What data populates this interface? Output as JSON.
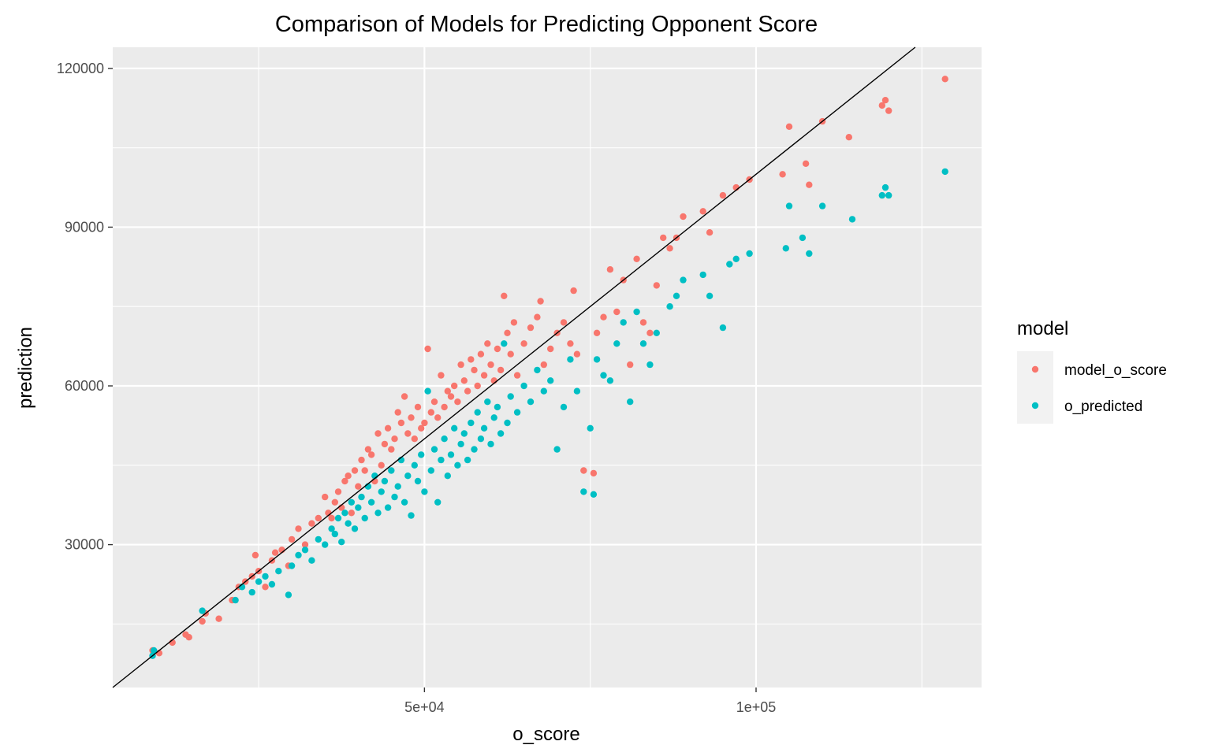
{
  "chart_data": {
    "type": "scatter",
    "title": "Comparison of Models for Predicting Opponent Score",
    "xlabel": "o_score",
    "ylabel": "prediction",
    "xlim": [
      3000,
      134000
    ],
    "ylim": [
      3000,
      124000
    ],
    "x_ticks": [
      {
        "value": 50000,
        "label": "5e+04"
      },
      {
        "value": 100000,
        "label": "1e+05"
      }
    ],
    "x_minor_ticks": [
      25000,
      75000,
      125000
    ],
    "y_ticks": [
      {
        "value": 30000,
        "label": "30000"
      },
      {
        "value": 60000,
        "label": "60000"
      },
      {
        "value": 90000,
        "label": "90000"
      },
      {
        "value": 120000,
        "label": "120000"
      }
    ],
    "y_minor_ticks": [
      15000,
      45000,
      75000,
      105000
    ],
    "grid": true,
    "panel_background": "#ebebeb",
    "reference_line": {
      "slope": 1,
      "intercept": 0,
      "color": "#000000"
    },
    "legend": {
      "title": "model",
      "placement": "right",
      "entries": [
        {
          "label": "model_o_score",
          "color": "#f8766d"
        },
        {
          "label": "o_predicted",
          "color": "#00bfc4"
        }
      ]
    },
    "series": [
      {
        "name": "model_o_score",
        "color": "#f8766d",
        "points": [
          [
            9000,
            10000
          ],
          [
            10000,
            9500
          ],
          [
            12000,
            11500
          ],
          [
            14000,
            13000
          ],
          [
            14500,
            12500
          ],
          [
            16500,
            15500
          ],
          [
            17000,
            17000
          ],
          [
            19000,
            16000
          ],
          [
            21000,
            19500
          ],
          [
            22000,
            22000
          ],
          [
            23000,
            23000
          ],
          [
            24000,
            24000
          ],
          [
            24500,
            28000
          ],
          [
            25000,
            25000
          ],
          [
            26000,
            22000
          ],
          [
            27000,
            27000
          ],
          [
            27500,
            28500
          ],
          [
            28500,
            29000
          ],
          [
            29500,
            26000
          ],
          [
            30000,
            31000
          ],
          [
            31000,
            33000
          ],
          [
            32000,
            30000
          ],
          [
            33000,
            34000
          ],
          [
            34000,
            35000
          ],
          [
            35000,
            39000
          ],
          [
            35500,
            36000
          ],
          [
            36000,
            35000
          ],
          [
            36500,
            38000
          ],
          [
            37000,
            40000
          ],
          [
            37500,
            37000
          ],
          [
            38000,
            42000
          ],
          [
            38500,
            43000
          ],
          [
            39000,
            36000
          ],
          [
            39500,
            44000
          ],
          [
            40000,
            41000
          ],
          [
            40500,
            46000
          ],
          [
            41000,
            44000
          ],
          [
            41500,
            48000
          ],
          [
            42000,
            47000
          ],
          [
            42500,
            42000
          ],
          [
            43000,
            51000
          ],
          [
            43500,
            45000
          ],
          [
            44000,
            49000
          ],
          [
            44500,
            52000
          ],
          [
            45000,
            48000
          ],
          [
            45500,
            50000
          ],
          [
            46000,
            55000
          ],
          [
            46500,
            53000
          ],
          [
            47000,
            58000
          ],
          [
            47500,
            51000
          ],
          [
            48000,
            54000
          ],
          [
            48500,
            50000
          ],
          [
            49000,
            56000
          ],
          [
            49500,
            52000
          ],
          [
            50000,
            53000
          ],
          [
            50500,
            67000
          ],
          [
            51000,
            55000
          ],
          [
            51500,
            57000
          ],
          [
            52000,
            54000
          ],
          [
            52500,
            62000
          ],
          [
            53000,
            56000
          ],
          [
            53500,
            59000
          ],
          [
            54000,
            58000
          ],
          [
            54500,
            60000
          ],
          [
            55000,
            57000
          ],
          [
            55500,
            64000
          ],
          [
            56000,
            61000
          ],
          [
            56500,
            59000
          ],
          [
            57000,
            65000
          ],
          [
            57500,
            63000
          ],
          [
            58000,
            60000
          ],
          [
            58500,
            66000
          ],
          [
            59000,
            62000
          ],
          [
            59500,
            68000
          ],
          [
            60000,
            64000
          ],
          [
            60500,
            61000
          ],
          [
            61000,
            67000
          ],
          [
            61500,
            63000
          ],
          [
            62000,
            77000
          ],
          [
            62500,
            70000
          ],
          [
            63000,
            66000
          ],
          [
            63500,
            72000
          ],
          [
            64000,
            62000
          ],
          [
            65000,
            68000
          ],
          [
            66000,
            71000
          ],
          [
            67000,
            73000
          ],
          [
            67500,
            76000
          ],
          [
            68000,
            64000
          ],
          [
            69000,
            67000
          ],
          [
            70000,
            70000
          ],
          [
            71000,
            72000
          ],
          [
            72000,
            68000
          ],
          [
            72500,
            78000
          ],
          [
            73000,
            66000
          ],
          [
            74000,
            44000
          ],
          [
            75500,
            43500
          ],
          [
            76000,
            70000
          ],
          [
            77000,
            73000
          ],
          [
            78000,
            82000
          ],
          [
            79000,
            74000
          ],
          [
            80000,
            80000
          ],
          [
            81000,
            64000
          ],
          [
            82000,
            84000
          ],
          [
            83000,
            72000
          ],
          [
            84000,
            70000
          ],
          [
            85000,
            79000
          ],
          [
            86000,
            88000
          ],
          [
            87000,
            86000
          ],
          [
            88000,
            88000
          ],
          [
            89000,
            92000
          ],
          [
            92000,
            93000
          ],
          [
            93000,
            89000
          ],
          [
            95000,
            96000
          ],
          [
            97000,
            97500
          ],
          [
            99000,
            99000
          ],
          [
            104000,
            100000
          ],
          [
            105000,
            109000
          ],
          [
            107500,
            102000
          ],
          [
            108000,
            98000
          ],
          [
            110000,
            110000
          ],
          [
            114000,
            107000
          ],
          [
            119000,
            113000
          ],
          [
            119500,
            114000
          ],
          [
            120000,
            112000
          ],
          [
            128500,
            118000
          ]
        ]
      },
      {
        "name": "o_predicted",
        "color": "#00bfc4",
        "points": [
          [
            9000,
            9000
          ],
          [
            9200,
            10000
          ],
          [
            16500,
            17500
          ],
          [
            21500,
            19500
          ],
          [
            22500,
            22000
          ],
          [
            24000,
            21000
          ],
          [
            25000,
            23000
          ],
          [
            26000,
            24000
          ],
          [
            27000,
            22500
          ],
          [
            28000,
            25000
          ],
          [
            29500,
            20500
          ],
          [
            30000,
            26000
          ],
          [
            31000,
            28000
          ],
          [
            32000,
            29000
          ],
          [
            33000,
            27000
          ],
          [
            34000,
            31000
          ],
          [
            35000,
            30000
          ],
          [
            36000,
            33000
          ],
          [
            36500,
            32000
          ],
          [
            37000,
            35000
          ],
          [
            37500,
            30500
          ],
          [
            38000,
            36000
          ],
          [
            38500,
            34000
          ],
          [
            39000,
            38000
          ],
          [
            39500,
            33000
          ],
          [
            40000,
            37000
          ],
          [
            40500,
            39000
          ],
          [
            41000,
            35000
          ],
          [
            41500,
            41000
          ],
          [
            42000,
            38000
          ],
          [
            42500,
            43000
          ],
          [
            43000,
            36000
          ],
          [
            43500,
            40000
          ],
          [
            44000,
            42000
          ],
          [
            44500,
            37000
          ],
          [
            45000,
            44000
          ],
          [
            45500,
            39000
          ],
          [
            46000,
            41000
          ],
          [
            46500,
            46000
          ],
          [
            47000,
            38000
          ],
          [
            47500,
            43000
          ],
          [
            48000,
            35500
          ],
          [
            48500,
            45000
          ],
          [
            49000,
            42000
          ],
          [
            49500,
            47000
          ],
          [
            50000,
            40000
          ],
          [
            50500,
            59000
          ],
          [
            51000,
            44000
          ],
          [
            51500,
            48000
          ],
          [
            52000,
            38000
          ],
          [
            52500,
            46000
          ],
          [
            53000,
            50000
          ],
          [
            53500,
            43000
          ],
          [
            54000,
            47000
          ],
          [
            54500,
            52000
          ],
          [
            55000,
            45000
          ],
          [
            55500,
            49000
          ],
          [
            56000,
            51000
          ],
          [
            56500,
            46000
          ],
          [
            57000,
            53000
          ],
          [
            57500,
            48000
          ],
          [
            58000,
            55000
          ],
          [
            58500,
            50000
          ],
          [
            59000,
            52000
          ],
          [
            59500,
            57000
          ],
          [
            60000,
            49000
          ],
          [
            60500,
            54000
          ],
          [
            61000,
            56000
          ],
          [
            61500,
            51000
          ],
          [
            62000,
            68000
          ],
          [
            62500,
            53000
          ],
          [
            63000,
            58000
          ],
          [
            64000,
            55000
          ],
          [
            65000,
            60000
          ],
          [
            66000,
            57000
          ],
          [
            67000,
            63000
          ],
          [
            68000,
            59000
          ],
          [
            69000,
            61000
          ],
          [
            70000,
            48000
          ],
          [
            71000,
            56000
          ],
          [
            72000,
            65000
          ],
          [
            73000,
            59000
          ],
          [
            74000,
            40000
          ],
          [
            75000,
            52000
          ],
          [
            75500,
            39500
          ],
          [
            76000,
            65000
          ],
          [
            77000,
            62000
          ],
          [
            78000,
            61000
          ],
          [
            79000,
            68000
          ],
          [
            80000,
            72000
          ],
          [
            81000,
            57000
          ],
          [
            82000,
            74000
          ],
          [
            83000,
            68000
          ],
          [
            84000,
            64000
          ],
          [
            85000,
            70000
          ],
          [
            87000,
            75000
          ],
          [
            88000,
            77000
          ],
          [
            89000,
            80000
          ],
          [
            92000,
            81000
          ],
          [
            93000,
            77000
          ],
          [
            95000,
            71000
          ],
          [
            96000,
            83000
          ],
          [
            97000,
            84000
          ],
          [
            99000,
            85000
          ],
          [
            104500,
            86000
          ],
          [
            105000,
            94000
          ],
          [
            107000,
            88000
          ],
          [
            108000,
            85000
          ],
          [
            110000,
            94000
          ],
          [
            114500,
            91500
          ],
          [
            119000,
            96000
          ],
          [
            119500,
            97500
          ],
          [
            120000,
            96000
          ],
          [
            128500,
            100500
          ]
        ]
      }
    ]
  }
}
